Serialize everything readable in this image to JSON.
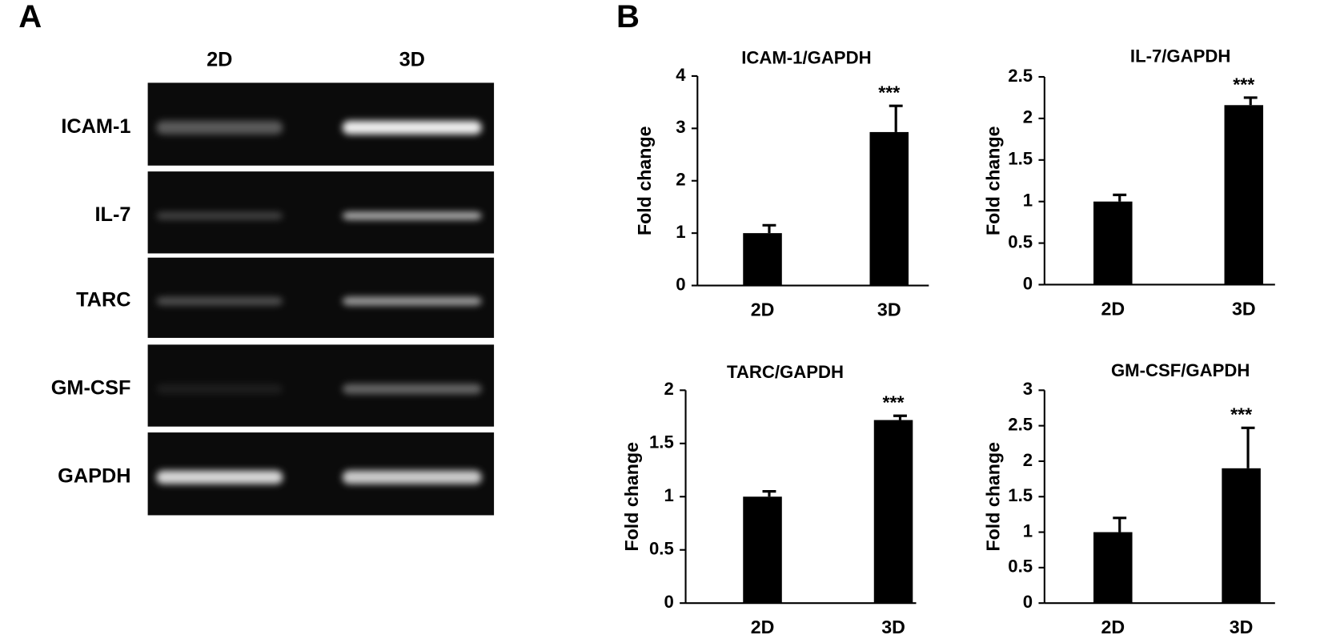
{
  "panels": [
    "A",
    "B"
  ],
  "gel": {
    "columns": [
      "2D",
      "3D"
    ],
    "rows": [
      "ICAM-1",
      "IL-7",
      "TARC",
      "GM-CSF",
      "GAPDH"
    ]
  },
  "chart_data": [
    {
      "type": "bar",
      "title": "ICAM-1/GAPDH",
      "ylabel": "Fold change",
      "categories": [
        "2D",
        "3D"
      ],
      "values": [
        1,
        2.93
      ],
      "errors": [
        0.15,
        0.5
      ],
      "color": "#000000",
      "ylim": [
        0,
        4
      ],
      "yticks": [
        0,
        1,
        2,
        3,
        4
      ],
      "annotations": [
        "***"
      ]
    },
    {
      "type": "bar",
      "title": "IL-7/GAPDH",
      "ylabel": "Fold change",
      "categories": [
        "2D",
        "3D"
      ],
      "values": [
        1,
        2.16
      ],
      "errors": [
        0.08,
        0.09
      ],
      "color": "#000000",
      "ylim": [
        0,
        2.5
      ],
      "yticks": [
        0,
        0.5,
        1,
        1.5,
        2,
        2.5
      ],
      "annotations": [
        "***"
      ]
    },
    {
      "type": "bar",
      "title": "TARC/GAPDH",
      "ylabel": "Fold change",
      "categories": [
        "2D",
        "3D"
      ],
      "values": [
        1,
        1.72
      ],
      "errors": [
        0.05,
        0.04
      ],
      "color": "#000000",
      "ylim": [
        0,
        2
      ],
      "yticks": [
        0,
        0.5,
        1,
        1.5,
        2
      ],
      "annotations": [
        "***"
      ]
    },
    {
      "type": "bar",
      "title": "GM-CSF/GAPDH",
      "ylabel": "Fold change",
      "categories": [
        "2D",
        "3D"
      ],
      "values": [
        1,
        1.9
      ],
      "errors": [
        0.2,
        0.57
      ],
      "color": "#000000",
      "ylim": [
        0,
        3
      ],
      "yticks": [
        0,
        0.5,
        1,
        1.5,
        2,
        2.5,
        3
      ],
      "annotations": [
        "***"
      ]
    }
  ]
}
